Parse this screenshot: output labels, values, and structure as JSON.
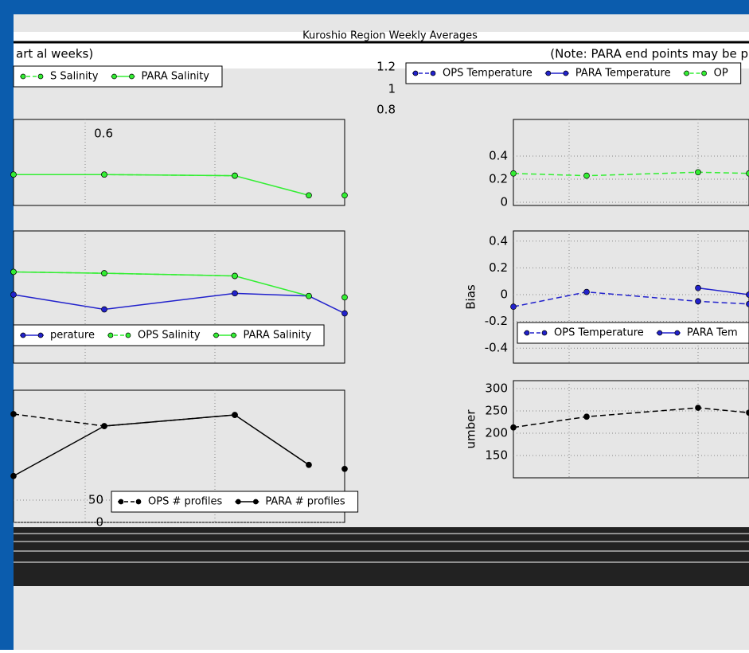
{
  "header": {
    "title": "Kuroshio Region Weekly Averages",
    "left_note": "art al weeks)",
    "right_note": "(Note: PARA end points may be p",
    "stray_ticks": [
      1.2,
      1.0,
      0.8,
      0.6
    ]
  },
  "chart_data": [
    {
      "type": "line",
      "categories": [
        null,
        null,
        null,
        null,
        null
      ],
      "ylim": [
        0,
        0.6
      ],
      "yticks": [],
      "grid": true,
      "legend": "upper left",
      "series": [
        {
          "name": "S Salinity",
          "color": "#33ee33",
          "dashed": true,
          "values": [
            0.24,
            0.24,
            0.23,
            null,
            0.06
          ]
        },
        {
          "name": "PARA Salinity",
          "color": "#33ee33",
          "dashed": false,
          "values": [
            0.24,
            0.24,
            0.23,
            0.06,
            null
          ]
        }
      ]
    },
    {
      "type": "line",
      "categories": [
        null,
        null,
        null,
        null
      ],
      "ylim": [
        0,
        0.6
      ],
      "yticks": [
        0.0,
        0.2,
        0.4
      ],
      "grid": true,
      "legend": "upper left",
      "series": [
        {
          "name": "OPS Temperature",
          "color": "#2222cc",
          "dashed": true,
          "values": [
            null,
            null,
            null,
            null
          ]
        },
        {
          "name": "PARA Temperature",
          "color": "#2222cc",
          "dashed": false,
          "values": [
            null,
            null,
            null,
            null
          ]
        },
        {
          "name": "OP",
          "color": "#33ee33",
          "dashed": true,
          "values": [
            0.25,
            0.23,
            0.26,
            0.25
          ]
        }
      ]
    },
    {
      "type": "line",
      "categories": [
        null,
        null,
        null,
        null,
        null
      ],
      "ylim": [
        -0.5,
        0.5
      ],
      "yticks": [],
      "grid": true,
      "legend": "lower left",
      "series": [
        {
          "name": "perature",
          "color": "#2222cc",
          "dashed": false,
          "values": [
            0.0,
            -0.11,
            0.01,
            -0.01,
            -0.14
          ]
        },
        {
          "name": "OPS Salinity",
          "color": "#33ee33",
          "dashed": true,
          "values": [
            0.17,
            0.16,
            0.14,
            null,
            -0.02
          ]
        },
        {
          "name": "PARA Salinity",
          "color": "#33ee33",
          "dashed": false,
          "values": [
            0.17,
            0.16,
            0.14,
            -0.01,
            null
          ]
        }
      ]
    },
    {
      "type": "line",
      "categories": [
        null,
        null,
        null,
        null
      ],
      "ylim": [
        -0.5,
        0.5
      ],
      "yticks": [
        0.4,
        0.2,
        0.0,
        -0.2,
        -0.4
      ],
      "ylabel": "Bias",
      "grid": true,
      "legend": "lower left",
      "series": [
        {
          "name": "OPS Temperature",
          "color": "#2222cc",
          "dashed": true,
          "values": [
            -0.09,
            0.02,
            -0.05,
            -0.07
          ]
        },
        {
          "name": "PARA Tem",
          "color": "#2222cc",
          "dashed": false,
          "values": [
            null,
            null,
            0.05,
            0.0
          ]
        }
      ]
    },
    {
      "type": "line",
      "categories": [
        null,
        null,
        null,
        null,
        null
      ],
      "ylim": [
        0,
        300
      ],
      "yticks": [
        50,
        0
      ],
      "grid": true,
      "legend": "lower left",
      "series": [
        {
          "name": "OPS # profiles",
          "color": "#000000",
          "dashed": true,
          "values": [
            243,
            216,
            241,
            null,
            120
          ]
        },
        {
          "name": "PARA # profiles",
          "color": "#000000",
          "dashed": false,
          "values": [
            104,
            216,
            241,
            129,
            null
          ]
        }
      ]
    },
    {
      "type": "line",
      "categories": [
        null,
        null,
        null,
        null
      ],
      "ylim": [
        0,
        300
      ],
      "yticks": [
        300,
        250,
        200,
        150
      ],
      "ylabel": "umber",
      "grid": true,
      "legend": "lower left",
      "series": [
        {
          "name": null,
          "color": "#000000",
          "dashed": true,
          "values": [
            213,
            237,
            257,
            246
          ]
        }
      ]
    }
  ]
}
